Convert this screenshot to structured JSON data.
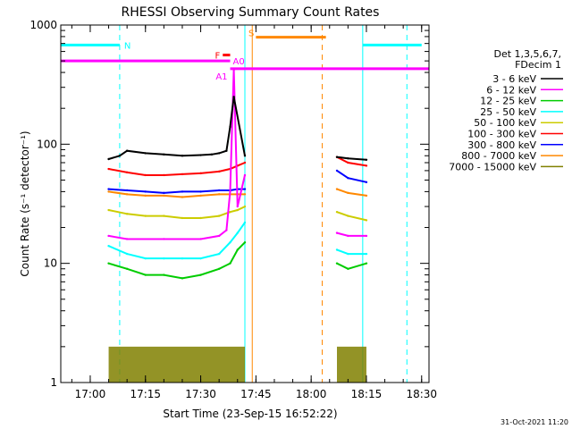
{
  "chart_data": {
    "type": "line",
    "title": "RHESSI Observing Summary Count Rates",
    "xlabel": "Start Time (23-Sep-15 16:52:22)",
    "ylabel": "Count Rate (s⁻¹ detector⁻¹)",
    "yscale": "log",
    "ylim": [
      1,
      1000
    ],
    "xlim": [
      "16:52",
      "18:32"
    ],
    "x_ticks": [
      "17:00",
      "17:15",
      "17:30",
      "17:45",
      "18:00",
      "18:15",
      "18:30"
    ],
    "y_ticks": [
      "1",
      "10",
      "100",
      "1000"
    ],
    "legend_header": [
      "Det 1,3,5,6,7,",
      "FDecim 1"
    ],
    "legend_position": "right",
    "footer": "31-Oct-2021 11:20",
    "series": [
      {
        "name": "3 - 6 keV",
        "color": "#000000",
        "segments": [
          {
            "x": [
              "17:05",
              "17:08",
              "17:10",
              "17:15",
              "17:20",
              "17:25",
              "17:30",
              "17:33",
              "17:35",
              "17:37",
              "17:38",
              "17:39",
              "17:42"
            ],
            "y": [
              75,
              80,
              88,
              84,
              82,
              80,
              81,
              82,
              84,
              88,
              140,
              250,
              80
            ]
          },
          {
            "x": [
              "18:07",
              "18:10",
              "18:15"
            ],
            "y": [
              78,
              76,
              74
            ]
          }
        ]
      },
      {
        "name": "6 - 12 keV",
        "color": "#ff00ff",
        "segments": [
          {
            "x": [
              "17:05",
              "17:10",
              "17:20",
              "17:30",
              "17:35",
              "17:37",
              "17:38",
              "17:39",
              "17:40",
              "17:42"
            ],
            "y": [
              17,
              16,
              16,
              16,
              17,
              19,
              40,
              420,
              30,
              55
            ]
          },
          {
            "x": [
              "18:07",
              "18:10",
              "18:15"
            ],
            "y": [
              18,
              17,
              17
            ]
          }
        ]
      },
      {
        "name": "12 - 25 keV",
        "color": "#00cc00",
        "segments": [
          {
            "x": [
              "17:05",
              "17:10",
              "17:15",
              "17:20",
              "17:25",
              "17:30",
              "17:35",
              "17:38",
              "17:40",
              "17:42"
            ],
            "y": [
              10,
              9,
              8,
              8,
              7.5,
              8,
              9,
              10,
              13,
              15
            ]
          },
          {
            "x": [
              "18:07",
              "18:10",
              "18:15"
            ],
            "y": [
              10,
              9,
              10
            ]
          }
        ]
      },
      {
        "name": "25 - 50 keV",
        "color": "#00ffff",
        "segments": [
          {
            "x": [
              "17:05",
              "17:10",
              "17:15",
              "17:20",
              "17:25",
              "17:30",
              "17:35",
              "17:38",
              "17:40",
              "17:42"
            ],
            "y": [
              14,
              12,
              11,
              11,
              11,
              11,
              12,
              15,
              18,
              22
            ]
          },
          {
            "x": [
              "18:07",
              "18:10",
              "18:15"
            ],
            "y": [
              13,
              12,
              12
            ]
          }
        ]
      },
      {
        "name": "50 - 100 keV",
        "color": "#cccc00",
        "segments": [
          {
            "x": [
              "17:05",
              "17:10",
              "17:15",
              "17:20",
              "17:25",
              "17:30",
              "17:35",
              "17:38",
              "17:40",
              "17:42"
            ],
            "y": [
              28,
              26,
              25,
              25,
              24,
              24,
              25,
              27,
              28,
              30
            ]
          },
          {
            "x": [
              "18:07",
              "18:10",
              "18:15"
            ],
            "y": [
              27,
              25,
              23
            ]
          }
        ]
      },
      {
        "name": "100 - 300 keV",
        "color": "#ff0000",
        "segments": [
          {
            "x": [
              "17:05",
              "17:10",
              "17:15",
              "17:20",
              "17:25",
              "17:30",
              "17:35",
              "17:38",
              "17:40",
              "17:42"
            ],
            "y": [
              62,
              58,
              55,
              55,
              56,
              57,
              59,
              62,
              66,
              70
            ]
          },
          {
            "x": [
              "18:07",
              "18:10",
              "18:15"
            ],
            "y": [
              78,
              70,
              66
            ]
          }
        ]
      },
      {
        "name": "300 - 800 keV",
        "color": "#0000ff",
        "segments": [
          {
            "x": [
              "17:05",
              "17:10",
              "17:15",
              "17:20",
              "17:25",
              "17:30",
              "17:35",
              "17:38",
              "17:40",
              "17:42"
            ],
            "y": [
              42,
              41,
              40,
              39,
              40,
              40,
              41,
              41,
              42,
              42
            ]
          },
          {
            "x": [
              "18:07",
              "18:10",
              "18:15"
            ],
            "y": [
              60,
              52,
              48
            ]
          }
        ]
      },
      {
        "name": "800 - 7000 keV",
        "color": "#ff8800",
        "segments": [
          {
            "x": [
              "17:05",
              "17:10",
              "17:15",
              "17:20",
              "17:25",
              "17:30",
              "17:35",
              "17:38",
              "17:40",
              "17:42"
            ],
            "y": [
              40,
              38,
              37,
              37,
              36,
              37,
              38,
              38,
              38,
              38
            ]
          },
          {
            "x": [
              "18:07",
              "18:10",
              "18:15"
            ],
            "y": [
              42,
              39,
              37
            ]
          }
        ]
      },
      {
        "name": "7000 - 15000 keV",
        "color": "#808000",
        "segments": [
          {
            "x": [
              "17:05",
              "17:42"
            ],
            "y": [
              2,
              2
            ]
          },
          {
            "x": [
              "18:07",
              "18:15"
            ],
            "y": [
              2,
              2
            ]
          }
        ]
      }
    ],
    "status_bars": [
      {
        "label": "N",
        "color": "#00ffff",
        "level": 680,
        "spans": [
          [
            "16:52",
            "17:08"
          ],
          [
            "18:14",
            "18:30"
          ]
        ]
      },
      {
        "label": "S",
        "color": "#ff8800",
        "level": 790,
        "spans": [
          [
            "17:45",
            "18:04"
          ]
        ]
      },
      {
        "label": "F",
        "color": "#ff0000",
        "level": 560,
        "spans": [
          [
            "17:36",
            "17:38"
          ]
        ]
      },
      {
        "label": "A0",
        "color": "#ff00ff",
        "level": 500,
        "spans": [
          [
            "16:52",
            "17:38"
          ]
        ]
      },
      {
        "label": "A1",
        "color": "#ff00ff",
        "level": 430,
        "spans": [
          [
            "17:38",
            "18:32"
          ]
        ]
      }
    ],
    "vertical_markers": [
      {
        "color": "#00ffff",
        "style": "solid",
        "x": [
          "16:52",
          "17:42",
          "18:14"
        ]
      },
      {
        "color": "#00ffff",
        "style": "dashed",
        "x": [
          "17:08",
          "18:26"
        ]
      },
      {
        "color": "#ff8800",
        "style": "solid",
        "x": [
          "17:44"
        ]
      },
      {
        "color": "#ff8800",
        "style": "dashed",
        "x": [
          "18:03"
        ]
      }
    ]
  }
}
